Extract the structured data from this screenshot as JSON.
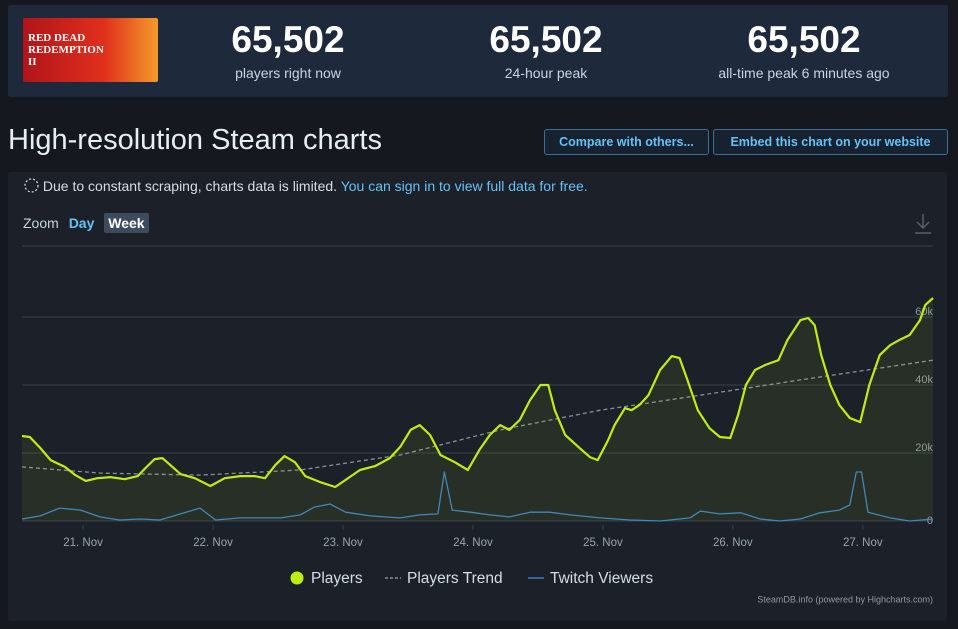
{
  "header": {
    "logo_text": "RED DEAD REDEMPTION II",
    "stats": [
      {
        "value": "65,502",
        "label": "players right now"
      },
      {
        "value": "65,502",
        "label": "24-hour peak"
      },
      {
        "value": "65,502",
        "label": "all-time peak 6 minutes ago"
      }
    ]
  },
  "section": {
    "title": "High-resolution Steam charts",
    "buttons": [
      "Compare with others...",
      "Embed this chart on your website"
    ]
  },
  "notice": {
    "text": "Due to constant scraping, charts data is limited.",
    "link": "You can sign in to view full data for free."
  },
  "zoom": {
    "label": "Zoom",
    "options": [
      "Day",
      "Week"
    ]
  },
  "chart_data": {
    "type": "line",
    "grid": true,
    "credits": "SteamDB.info (powered by Highcharts.com)",
    "legend": "bottom",
    "xlim": [
      20.53,
      27.54
    ],
    "xticks": [
      {
        "value": 21,
        "label": "21. Nov"
      },
      {
        "value": 22,
        "label": "22. Nov"
      },
      {
        "value": 23,
        "label": "23. Nov"
      },
      {
        "value": 24,
        "label": "24. Nov"
      },
      {
        "value": 25,
        "label": "25. Nov"
      },
      {
        "value": 26,
        "label": "26. Nov"
      },
      {
        "value": 27,
        "label": "27. Nov"
      }
    ],
    "ylim": [
      0,
      80000
    ],
    "yticks": [
      0,
      {
        "value": 20000,
        "label": "20k"
      },
      {
        "value": 40000,
        "label": "40k"
      },
      {
        "value": 60000,
        "label": "60k"
      }
    ],
    "series": [
      {
        "name": "Players",
        "color": "#beee11",
        "style": "solid",
        "area": true,
        "x": [
          20.53,
          20.59,
          20.67,
          20.75,
          20.86,
          20.94,
          21.02,
          21.11,
          21.21,
          21.32,
          21.42,
          21.48,
          21.55,
          21.61,
          21.67,
          21.75,
          21.86,
          21.98,
          22.09,
          22.21,
          22.32,
          22.4,
          22.48,
          22.55,
          22.63,
          22.71,
          22.82,
          22.94,
          23.02,
          23.13,
          23.25,
          23.36,
          23.44,
          23.52,
          23.59,
          23.67,
          23.75,
          23.86,
          23.96,
          24.05,
          24.13,
          24.21,
          24.28,
          24.36,
          24.44,
          24.52,
          24.58,
          24.63,
          24.71,
          24.82,
          24.9,
          24.96,
          25.04,
          25.09,
          25.17,
          25.22,
          25.28,
          25.35,
          25.44,
          25.53,
          25.59,
          25.65,
          25.73,
          25.82,
          25.9,
          25.98,
          26.04,
          26.1,
          26.17,
          26.25,
          26.35,
          26.42,
          26.52,
          26.58,
          26.63,
          26.68,
          26.75,
          26.82,
          26.9,
          26.98,
          27.05,
          27.13,
          27.21,
          27.28,
          27.36,
          27.44,
          27.48,
          27.54
        ],
        "values": [
          25000,
          24700,
          21500,
          17900,
          15900,
          13500,
          11800,
          12600,
          12900,
          12300,
          13200,
          15600,
          18200,
          18500,
          16500,
          13800,
          12600,
          10300,
          12600,
          13200,
          13200,
          12600,
          16500,
          19100,
          17300,
          13200,
          11500,
          10000,
          12100,
          15000,
          16200,
          18500,
          21800,
          26800,
          28200,
          25300,
          19400,
          17300,
          15000,
          20900,
          25300,
          28200,
          26800,
          29700,
          35600,
          40000,
          40000,
          32600,
          25300,
          21500,
          18800,
          17900,
          23800,
          28200,
          33200,
          32600,
          34100,
          37000,
          44400,
          48500,
          47900,
          41500,
          32600,
          27300,
          24700,
          24400,
          31200,
          40000,
          44400,
          45900,
          47300,
          53200,
          59100,
          59700,
          57600,
          48800,
          40000,
          34100,
          30300,
          29100,
          40000,
          48800,
          51700,
          53200,
          54700,
          59100,
          63500,
          65600
        ]
      },
      {
        "name": "Players Trend",
        "color": "#8a8f96",
        "style": "dashed",
        "x": [
          20.53,
          21.13,
          21.9,
          22.67,
          23.44,
          24.21,
          24.98,
          25.75,
          26.52,
          27.54
        ],
        "values": [
          15900,
          14100,
          13500,
          15000,
          19400,
          26800,
          32600,
          37000,
          41500,
          47300
        ]
      },
      {
        "name": "Twitch Viewers",
        "color": "#3a7fc4",
        "style": "solid",
        "x": [
          20.53,
          20.67,
          20.82,
          20.98,
          21.13,
          21.28,
          21.44,
          21.59,
          21.75,
          21.9,
          22.02,
          22.21,
          22.37,
          22.52,
          22.67,
          22.78,
          22.9,
          23.02,
          23.21,
          23.44,
          23.59,
          23.73,
          23.78,
          23.84,
          23.98,
          24.13,
          24.28,
          24.44,
          24.59,
          24.75,
          24.98,
          25.21,
          25.44,
          25.67,
          25.75,
          25.9,
          26.06,
          26.21,
          26.36,
          26.52,
          26.67,
          26.82,
          26.9,
          26.95,
          26.99,
          27.04,
          27.21,
          27.36,
          27.54
        ],
        "values": [
          600,
          1500,
          3800,
          3200,
          1200,
          300,
          600,
          300,
          2100,
          3800,
          300,
          900,
          900,
          900,
          1800,
          4100,
          5000,
          2600,
          1500,
          900,
          1800,
          2100,
          14400,
          3200,
          2600,
          1800,
          1200,
          2600,
          2600,
          1800,
          900,
          300,
          0,
          900,
          2900,
          2100,
          2400,
          600,
          0,
          600,
          2400,
          3200,
          4700,
          14400,
          14400,
          2600,
          900,
          0,
          600
        ]
      }
    ]
  }
}
